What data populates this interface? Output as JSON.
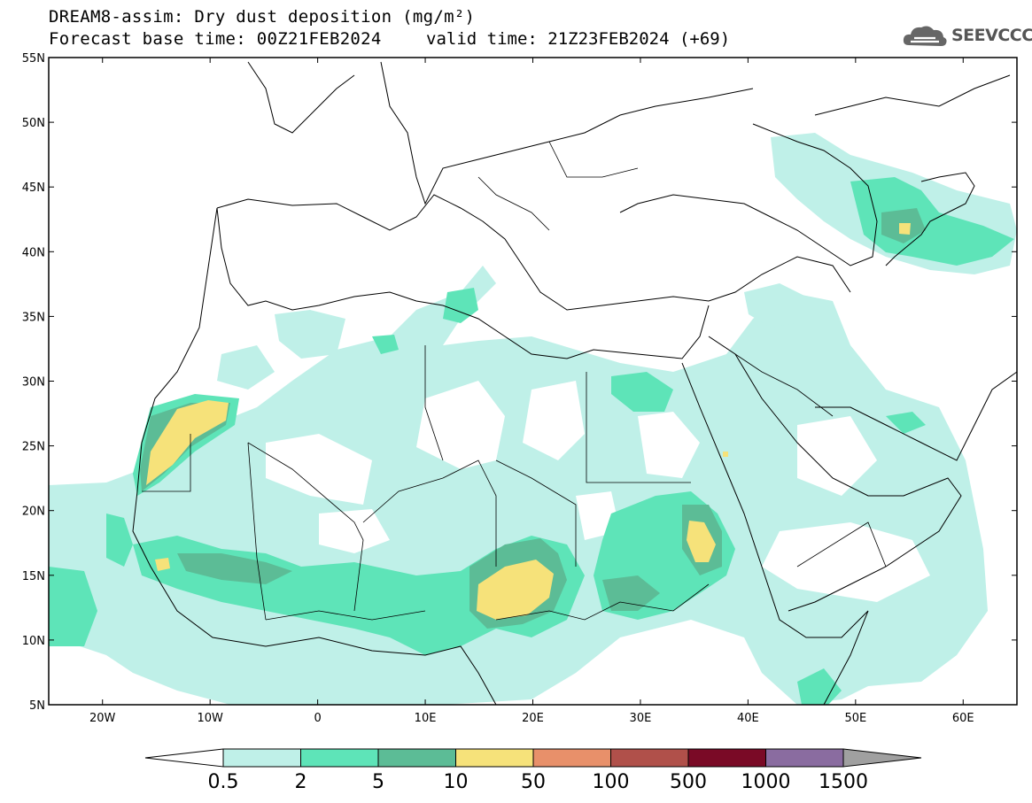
{
  "title": {
    "line1": "DREAM8-assim: Dry dust deposition (mg/m²)",
    "line2": "Forecast base time: 00Z21FEB2024",
    "valid": "valid time: 21Z23FEB2024 (+69)"
  },
  "logo": {
    "text": "SEEVCCC",
    "icon": "cloud-icon"
  },
  "axes": {
    "lat_ticks": [
      "55N",
      "50N",
      "45N",
      "40N",
      "35N",
      "30N",
      "25N",
      "20N",
      "15N",
      "10N",
      "5N"
    ],
    "lon_ticks": [
      "20W",
      "10W",
      "0",
      "10E",
      "20E",
      "30E",
      "40E",
      "50E",
      "60E"
    ],
    "lat_range": [
      5,
      55
    ],
    "lon_range": [
      -25,
      65
    ]
  },
  "colorbar": {
    "levels": [
      "0.5",
      "2",
      "5",
      "10",
      "50",
      "100",
      "500",
      "1000",
      "1500"
    ],
    "colors": [
      "#bff0e8",
      "#5ee4b8",
      "#5cbc96",
      "#f6e27a",
      "#e8906a",
      "#b0504a",
      "#7a0a26",
      "#8a6ca0"
    ],
    "under_color": "#ffffff",
    "over_color": "#a0a0a0"
  },
  "colors": {
    "light": "#bff0e8",
    "mid": "#5ee4b8",
    "dark": "#5cbc96",
    "yellow": "#f6e27a"
  }
}
